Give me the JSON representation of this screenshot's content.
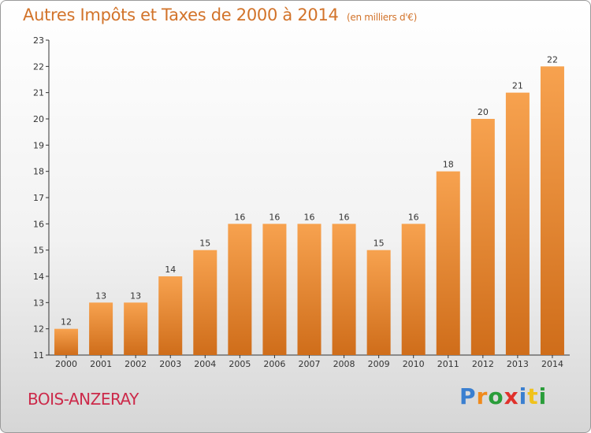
{
  "header": {
    "title": "Autres Impôts et Taxes de 2000 à 2014",
    "unit": "(en milliers d'€)"
  },
  "footer": {
    "commune": "BOIS-ANZERAY",
    "logo": "Proxiti"
  },
  "colors": {
    "bar_top": "#f7a24f",
    "bar_bottom": "#cf6d1a",
    "title": "#d2732a",
    "commune": "#cc2a4a"
  },
  "chart_data": {
    "type": "bar",
    "categories": [
      "2000",
      "2001",
      "2002",
      "2003",
      "2004",
      "2005",
      "2006",
      "2007",
      "2008",
      "2009",
      "2010",
      "2011",
      "2012",
      "2013",
      "2014"
    ],
    "values": [
      12,
      13,
      13,
      14,
      15,
      16,
      16,
      16,
      16,
      15,
      16,
      18,
      20,
      21,
      22
    ],
    "ylim": [
      11,
      23
    ],
    "yticks": [
      11,
      12,
      13,
      14,
      15,
      16,
      17,
      18,
      19,
      20,
      21,
      22,
      23
    ],
    "title": "Autres Impôts et Taxes de 2000 à 2014",
    "subtitle": "(en milliers d'€)",
    "grid": false
  }
}
